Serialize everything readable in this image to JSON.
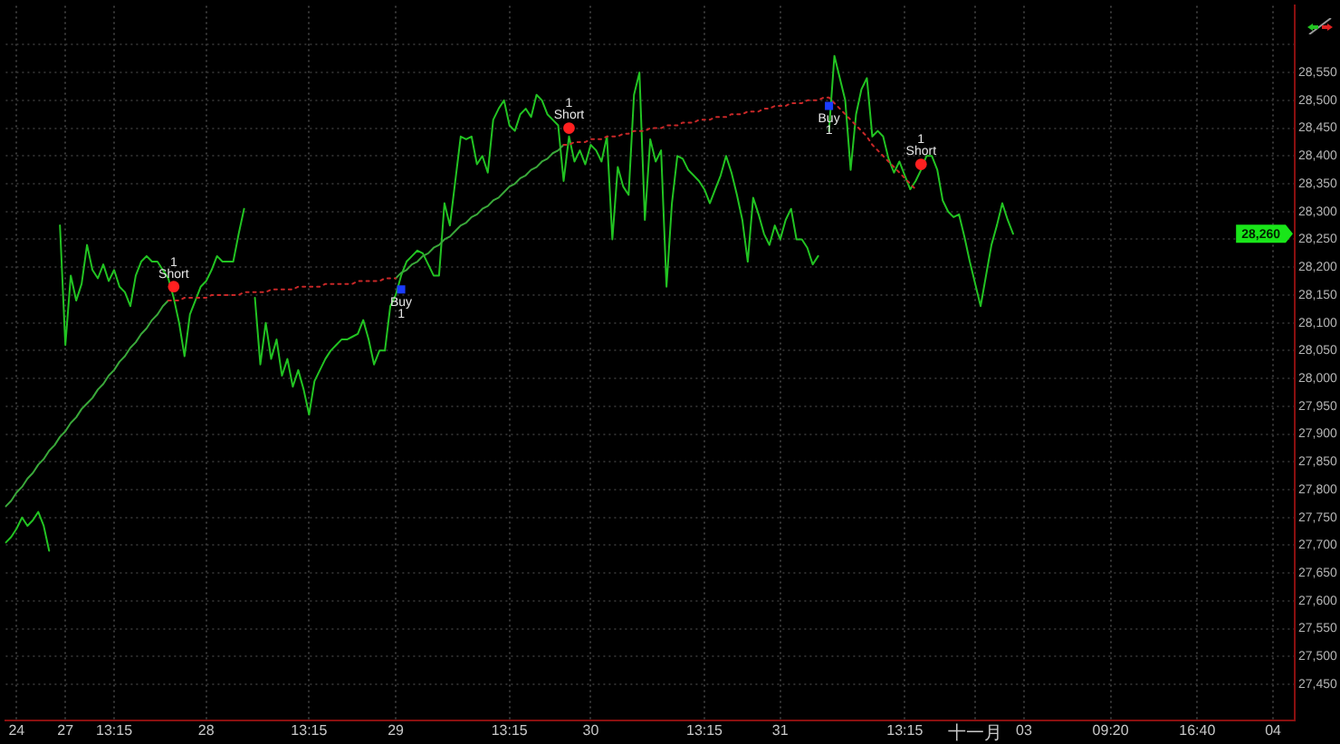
{
  "chart_data": {
    "type": "line",
    "grid": true,
    "marker": "none",
    "line_style": "solid",
    "categories": [
      null,
      null,
      "24",
      null,
      null,
      null,
      null,
      null,
      null,
      null,
      null,
      "27",
      null,
      null,
      null,
      null,
      null,
      null,
      null,
      null,
      "13:15",
      null,
      null,
      null,
      null,
      null,
      null,
      null,
      null,
      null,
      null,
      null,
      null,
      null,
      null,
      null,
      null,
      "28",
      null,
      null,
      null,
      null,
      null,
      null,
      null,
      null,
      null,
      null,
      null,
      null,
      null,
      null,
      null,
      null,
      null,
      null,
      "13:15",
      null,
      null,
      null,
      null,
      null,
      null,
      null,
      null,
      null,
      null,
      null,
      null,
      null,
      null,
      null,
      "29",
      null,
      null,
      null,
      null,
      null,
      null,
      null,
      null,
      null,
      null,
      null,
      null,
      null,
      null,
      null,
      null,
      null,
      null,
      null,
      null,
      "13:15",
      null,
      null,
      null,
      null,
      null,
      null,
      null,
      null,
      null,
      null,
      null,
      null,
      null,
      null,
      "30",
      null,
      null,
      null,
      null,
      null,
      null,
      null,
      null,
      null,
      null,
      null,
      null,
      null,
      null,
      null,
      null,
      null,
      null,
      null,
      null,
      "13:15",
      null,
      null,
      null,
      null,
      null,
      null,
      null,
      null,
      null,
      null,
      null,
      null,
      null,
      "31",
      null,
      null,
      null,
      null,
      null,
      null,
      null,
      null,
      null,
      null,
      null,
      null,
      null,
      null,
      null,
      null,
      null,
      null,
      null,
      null,
      null,
      null,
      "13:15",
      null,
      null,
      null,
      null,
      null,
      null,
      null,
      null,
      null,
      null,
      null,
      null,
      "十一月",
      null,
      null,
      null,
      null,
      null,
      null,
      null,
      null,
      "03",
      null,
      null,
      null,
      null,
      null,
      null,
      null,
      null,
      null,
      null,
      null,
      null,
      null,
      null,
      null,
      "09:20",
      null,
      null,
      null,
      null,
      null,
      null,
      null,
      null,
      null,
      null,
      null,
      null,
      null,
      null,
      null,
      "16:40",
      null,
      null,
      null,
      null,
      null,
      null,
      null,
      null,
      null,
      null,
      null,
      null,
      null,
      "04",
      null,
      null,
      null,
      null
    ],
    "ylim": [
      27385,
      28670
    ],
    "yticks": [
      {
        "value": 27450,
        "label": "27,450"
      },
      {
        "value": 27500,
        "label": "27,500"
      },
      {
        "value": 27550,
        "label": "27,550"
      },
      {
        "value": 27600,
        "label": "27,600"
      },
      {
        "value": 27650,
        "label": "27,650"
      },
      {
        "value": 27700,
        "label": "27,700"
      },
      {
        "value": 27750,
        "label": "27,750"
      },
      {
        "value": 27800,
        "label": "27,800"
      },
      {
        "value": 27850,
        "label": "27,850"
      },
      {
        "value": 27900,
        "label": "27,900"
      },
      {
        "value": 27950,
        "label": "27,950"
      },
      {
        "value": 28000,
        "label": "28,000"
      },
      {
        "value": 28050,
        "label": "28,050"
      },
      {
        "value": 28100,
        "label": "28,100"
      },
      {
        "value": 28150,
        "label": "28,150"
      },
      {
        "value": 28200,
        "label": "28,200"
      },
      {
        "value": 28250,
        "label": "28,250"
      },
      {
        "value": 28300,
        "label": "28,300"
      },
      {
        "value": 28350,
        "label": "28,350"
      },
      {
        "value": 28400,
        "label": "28,400"
      },
      {
        "value": 28450,
        "label": "28,450"
      },
      {
        "value": 28500,
        "label": "28,500"
      },
      {
        "value": 28550,
        "label": "28,550"
      },
      {
        "value": 28600,
        "label": null
      }
    ],
    "series": [
      {
        "color": "#22c322",
        "values": [
          27705,
          27715,
          27730,
          27750,
          27735,
          27745,
          27760,
          27735,
          27690,
          null,
          28275,
          28060,
          28185,
          28140,
          28170,
          28240,
          28195,
          28180,
          28205,
          28175,
          28195,
          28165,
          28155,
          28130,
          28185,
          28210,
          28220,
          28210,
          28210,
          28195,
          28180,
          28145,
          28100,
          28040,
          28115,
          28140,
          28165,
          28175,
          28195,
          28220,
          28210,
          28210,
          28210,
          28260,
          28305,
          null,
          28145,
          28025,
          28100,
          28035,
          28070,
          28005,
          28035,
          27985,
          28015,
          27980,
          27935,
          27995,
          28015,
          28035,
          28050,
          28060,
          28070,
          28070,
          28075,
          28080,
          28105,
          28070,
          28025,
          28050,
          28050,
          28130,
          28150,
          28185,
          28210,
          28220,
          28230,
          28225,
          28205,
          28185,
          28185,
          28315,
          28275,
          28355,
          28435,
          28430,
          28435,
          28385,
          28400,
          28370,
          28465,
          28485,
          28500,
          28455,
          28445,
          28475,
          28485,
          28470,
          28510,
          28500,
          28475,
          28465,
          28455,
          28355,
          28435,
          28390,
          28410,
          28385,
          28420,
          28410,
          28390,
          28435,
          28250,
          28380,
          28345,
          28330,
          28510,
          28550,
          28285,
          28430,
          28390,
          28410,
          28165,
          28315,
          28400,
          28395,
          28375,
          28365,
          28355,
          28340,
          28315,
          28340,
          28365,
          28400,
          28370,
          28330,
          28285,
          28210,
          28325,
          28295,
          28260,
          28240,
          28275,
          28250,
          28285,
          28305,
          28250,
          28250,
          28235,
          28205,
          28220,
          null,
          28445,
          28580,
          28540,
          28500,
          28375,
          28475,
          28520,
          28540,
          28435,
          28445,
          28435,
          28395,
          28370,
          28390,
          28365,
          28340,
          28355,
          28375,
          28400,
          28400,
          28375,
          28320,
          28300,
          28290,
          28295,
          28255,
          28210,
          28170,
          28130,
          28185,
          28240,
          28275,
          28315,
          28285,
          28260,
          null,
          null,
          null,
          null,
          null,
          null,
          null,
          null,
          null,
          null,
          null,
          null,
          null,
          null,
          null,
          null,
          null,
          null,
          null,
          null,
          null,
          null,
          null,
          null,
          null,
          null,
          null,
          null,
          null,
          null,
          null,
          null,
          null,
          null,
          null,
          null,
          null,
          null,
          null,
          null,
          null,
          null,
          null,
          null,
          null,
          null,
          null,
          null,
          null,
          null,
          null,
          null
        ]
      },
      {
        "color": "#3aa83a",
        "values": [
          27770,
          27780,
          27795,
          27805,
          27820,
          27830,
          27845,
          27855,
          27870,
          27880,
          27895,
          27905,
          27920,
          27930,
          27945,
          27955,
          27965,
          27980,
          27990,
          28005,
          28015,
          28030,
          28040,
          28055,
          28065,
          28080,
          28090,
          28105,
          28115,
          28130,
          28140,
          null,
          null,
          null,
          null,
          null,
          null,
          null,
          null,
          null,
          null,
          null,
          null,
          null,
          null,
          null,
          null,
          null,
          null,
          null,
          null,
          null,
          null,
          null,
          null,
          null,
          null,
          null,
          null,
          null,
          null,
          null,
          null,
          null,
          null,
          null,
          null,
          null,
          null,
          null,
          null,
          null,
          28180,
          28190,
          28195,
          28205,
          28210,
          28220,
          28225,
          28235,
          28240,
          28250,
          28255,
          28265,
          28275,
          28280,
          28290,
          28295,
          28305,
          28310,
          28320,
          28325,
          28335,
          28345,
          28350,
          28360,
          28365,
          28375,
          28380,
          28390,
          28395,
          28405,
          28410,
          28420,
          null,
          null,
          null,
          null,
          null,
          null,
          null,
          null,
          null,
          null,
          null,
          null,
          null,
          null,
          null,
          null,
          null,
          null,
          null,
          null,
          null,
          null,
          null,
          null,
          null,
          null,
          null,
          null,
          null,
          null,
          null,
          null,
          null,
          null,
          null,
          null,
          null,
          null,
          null,
          null,
          null,
          null,
          null,
          null,
          null,
          null,
          null,
          null,
          null,
          null,
          null,
          null,
          null,
          null,
          null,
          null,
          null,
          null,
          null,
          null,
          null,
          null,
          null,
          null,
          null,
          null,
          null,
          null,
          null,
          null,
          null,
          null,
          null,
          null,
          null,
          null,
          null,
          null,
          null,
          null,
          null,
          null,
          null,
          null,
          null,
          null,
          null,
          null,
          null,
          null,
          null,
          null,
          null,
          null,
          null,
          null,
          null,
          null,
          null,
          null,
          null,
          null,
          null,
          null,
          null,
          null,
          null,
          null,
          null,
          null,
          null,
          null,
          null,
          null,
          null,
          null,
          null,
          null,
          null,
          null,
          null,
          null,
          null,
          null,
          null,
          null,
          null,
          null,
          null,
          null,
          null,
          null,
          null,
          null,
          null
        ]
      },
      {
        "color": "#c82828",
        "line_style": "dotted",
        "values": [
          null,
          null,
          null,
          null,
          null,
          null,
          null,
          null,
          null,
          null,
          null,
          null,
          null,
          null,
          null,
          null,
          null,
          null,
          null,
          null,
          null,
          null,
          null,
          null,
          null,
          null,
          null,
          null,
          null,
          null,
          28140,
          28140,
          28140,
          28145,
          28145,
          28145,
          28145,
          28145,
          28150,
          28150,
          28150,
          28150,
          28150,
          28150,
          28155,
          28155,
          28155,
          28155,
          28155,
          28160,
          28160,
          28160,
          28160,
          28160,
          28165,
          28165,
          28165,
          28165,
          28165,
          28170,
          28170,
          28170,
          28170,
          28170,
          28170,
          28175,
          28175,
          28175,
          28175,
          28175,
          28180,
          28180,
          28180,
          null,
          null,
          null,
          null,
          null,
          null,
          null,
          null,
          null,
          null,
          null,
          null,
          null,
          null,
          null,
          null,
          null,
          null,
          null,
          null,
          null,
          null,
          null,
          null,
          null,
          null,
          null,
          null,
          null,
          null,
          28420,
          28420,
          28425,
          28425,
          28425,
          28430,
          28430,
          28430,
          28435,
          28435,
          28435,
          28440,
          28440,
          28445,
          28445,
          28445,
          28450,
          28450,
          28450,
          28455,
          28455,
          28455,
          28460,
          28460,
          28460,
          28465,
          28465,
          28465,
          28470,
          28470,
          28470,
          28475,
          28475,
          28475,
          28480,
          28480,
          28480,
          28485,
          28485,
          28490,
          28490,
          28490,
          28495,
          28495,
          28495,
          28500,
          28500,
          28500,
          28505,
          28505,
          28495,
          28485,
          28475,
          28465,
          28455,
          28445,
          28435,
          28420,
          28410,
          28400,
          28390,
          28380,
          28370,
          28360,
          28350,
          28340,
          null,
          null,
          null,
          null,
          null,
          null,
          null,
          null,
          null,
          null,
          null,
          null,
          null,
          null,
          null,
          null,
          null,
          null,
          null,
          null,
          null,
          null,
          null,
          null,
          null,
          null,
          null,
          null,
          null,
          null,
          null,
          null,
          null,
          null,
          null,
          null,
          null,
          null,
          null,
          null,
          null,
          null,
          null,
          null,
          null,
          null,
          null,
          null,
          null,
          null,
          null,
          null,
          null,
          null,
          null,
          null,
          null,
          null,
          null,
          null,
          null,
          null,
          null,
          null,
          null,
          null,
          null,
          null,
          null,
          null
        ]
      },
      {
        "type": "scatter",
        "name": "Short",
        "color": "#ff2020",
        "marker": "circle",
        "values": [
          null,
          null,
          null,
          null,
          null,
          null,
          null,
          null,
          null,
          null,
          null,
          null,
          null,
          null,
          null,
          null,
          null,
          null,
          null,
          null,
          null,
          null,
          null,
          null,
          null,
          null,
          null,
          null,
          null,
          null,
          null,
          28165,
          null,
          null,
          null,
          null,
          null,
          null,
          null,
          null,
          null,
          null,
          null,
          null,
          null,
          null,
          null,
          null,
          null,
          null,
          null,
          null,
          null,
          null,
          null,
          null,
          null,
          null,
          null,
          null,
          null,
          null,
          null,
          null,
          null,
          null,
          null,
          null,
          null,
          null,
          null,
          null,
          null,
          null,
          null,
          null,
          null,
          null,
          null,
          null,
          null,
          null,
          null,
          null,
          null,
          null,
          null,
          null,
          null,
          null,
          null,
          null,
          null,
          null,
          null,
          null,
          null,
          null,
          null,
          null,
          null,
          null,
          null,
          null,
          28450,
          null,
          null,
          null,
          null,
          null,
          null,
          null,
          null,
          null,
          null,
          null,
          null,
          null,
          null,
          null,
          null,
          null,
          null,
          null,
          null,
          null,
          null,
          null,
          null,
          null,
          null,
          null,
          null,
          null,
          null,
          null,
          null,
          null,
          null,
          null,
          null,
          null,
          null,
          null,
          null,
          null,
          null,
          null,
          null,
          null,
          null,
          null,
          null,
          null,
          null,
          null,
          null,
          null,
          null,
          null,
          null,
          null,
          null,
          null,
          null,
          null,
          null,
          null,
          null,
          28385,
          null,
          null,
          null,
          null,
          null,
          null,
          null,
          null,
          null,
          null,
          null,
          null,
          null,
          null,
          null,
          null,
          null,
          null,
          null,
          null,
          null,
          null,
          null,
          null,
          null,
          null,
          null,
          null,
          null,
          null,
          null,
          null,
          null,
          null,
          null,
          null,
          null,
          null,
          null,
          null,
          null,
          null,
          null,
          null,
          null,
          null,
          null,
          null,
          null,
          null,
          null,
          null,
          null,
          null,
          null,
          null,
          null,
          null,
          null,
          null,
          null,
          null,
          null,
          null,
          null,
          null,
          null,
          null,
          null
        ]
      },
      {
        "type": "scatter",
        "name": "Buy",
        "color": "#1a3cff",
        "marker": "square",
        "values": [
          null,
          null,
          null,
          null,
          null,
          null,
          null,
          null,
          null,
          null,
          null,
          null,
          null,
          null,
          null,
          null,
          null,
          null,
          null,
          null,
          null,
          null,
          null,
          null,
          null,
          null,
          null,
          null,
          null,
          null,
          null,
          null,
          null,
          null,
          null,
          null,
          null,
          null,
          null,
          null,
          null,
          null,
          null,
          null,
          null,
          null,
          null,
          null,
          null,
          null,
          null,
          null,
          null,
          null,
          null,
          null,
          null,
          null,
          null,
          null,
          null,
          null,
          null,
          null,
          null,
          null,
          null,
          null,
          null,
          null,
          null,
          null,
          null,
          28160,
          null,
          null,
          null,
          null,
          null,
          null,
          null,
          null,
          null,
          null,
          null,
          null,
          null,
          null,
          null,
          null,
          null,
          null,
          null,
          null,
          null,
          null,
          null,
          null,
          null,
          null,
          null,
          null,
          null,
          null,
          null,
          null,
          null,
          null,
          null,
          null,
          null,
          null,
          null,
          null,
          null,
          null,
          null,
          null,
          null,
          null,
          null,
          null,
          null,
          null,
          null,
          null,
          null,
          null,
          null,
          null,
          null,
          null,
          null,
          null,
          null,
          null,
          null,
          null,
          null,
          null,
          null,
          null,
          null,
          null,
          null,
          null,
          null,
          null,
          null,
          null,
          null,
          null,
          28490,
          null,
          null,
          null,
          null,
          null,
          null,
          null,
          null,
          null,
          null,
          null,
          null,
          null,
          null,
          null,
          null,
          null,
          null,
          null,
          null,
          null,
          null,
          null,
          null,
          null,
          null,
          null,
          null,
          null,
          null,
          null,
          null,
          null,
          null,
          null,
          null,
          null,
          null,
          null,
          null,
          null,
          null,
          null,
          null,
          null,
          null,
          null,
          null,
          null,
          null,
          null,
          null,
          null,
          null,
          null,
          null,
          null,
          null,
          null,
          null,
          null,
          null,
          null,
          null,
          null,
          null,
          null,
          null,
          null,
          null,
          null,
          null,
          null,
          null,
          null,
          null,
          null,
          null,
          null,
          null,
          null,
          null,
          null,
          null,
          null,
          null
        ]
      }
    ],
    "annotations": [
      "1",
      "1",
      "1",
      "1",
      "1",
      {
        "text": "28,260",
        "y": 28260
      }
    ]
  }
}
